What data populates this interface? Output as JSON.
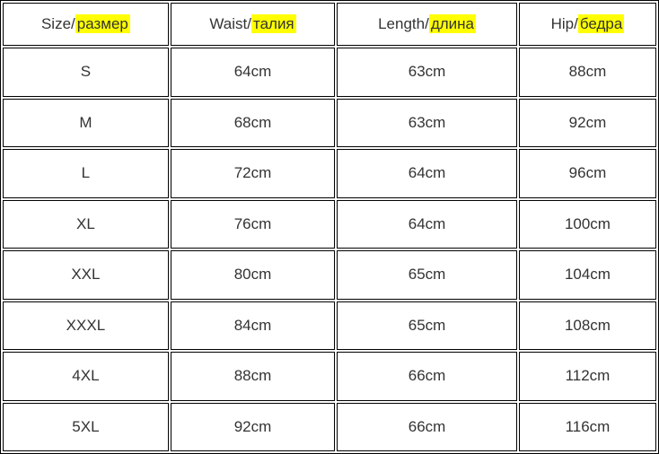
{
  "page": {
    "background_color": "#ffffff",
    "text_color": "#333333",
    "border_color": "#000000",
    "highlight_color": "#ffff00"
  },
  "table": {
    "columns": [
      {
        "prefix": "Size/",
        "highlighted": "размер"
      },
      {
        "prefix": "Waist/",
        "highlighted": "талия"
      },
      {
        "prefix": "Length/",
        "highlighted": "длина"
      },
      {
        "prefix": "Hip/",
        "highlighted": "бедра"
      }
    ],
    "rows": [
      {
        "size": "S",
        "waist": "64cm",
        "length": "63cm",
        "hip": "88cm"
      },
      {
        "size": "M",
        "waist": "68cm",
        "length": "63cm",
        "hip": "92cm"
      },
      {
        "size": "L",
        "waist": "72cm",
        "length": "64cm",
        "hip": "96cm"
      },
      {
        "size": "XL",
        "waist": "76cm",
        "length": "64cm",
        "hip": "100cm"
      },
      {
        "size": "XXL",
        "waist": "80cm",
        "length": "65cm",
        "hip": "104cm"
      },
      {
        "size": "XXXL",
        "waist": "84cm",
        "length": "65cm",
        "hip": "108cm"
      },
      {
        "size": "4XL",
        "waist": "88cm",
        "length": "66cm",
        "hip": "112cm"
      },
      {
        "size": "5XL",
        "waist": "92cm",
        "length": "66cm",
        "hip": "116cm"
      }
    ]
  },
  "chart_data": {
    "type": "table",
    "title": "",
    "columns": [
      "Size/размер",
      "Waist/талия",
      "Length/длина",
      "Hip/бедра"
    ],
    "rows": [
      [
        "S",
        "64cm",
        "63cm",
        "88cm"
      ],
      [
        "M",
        "68cm",
        "63cm",
        "92cm"
      ],
      [
        "L",
        "72cm",
        "64cm",
        "96cm"
      ],
      [
        "XL",
        "76cm",
        "64cm",
        "100cm"
      ],
      [
        "XXL",
        "80cm",
        "65cm",
        "104cm"
      ],
      [
        "XXXL",
        "84cm",
        "65cm",
        "108cm"
      ],
      [
        "4XL",
        "88cm",
        "66cm",
        "112cm"
      ],
      [
        "5XL",
        "92cm",
        "66cm",
        "116cm"
      ]
    ],
    "notes": "Russian word in each column header is highlighted yellow (#ffff00). Units in cm embedded in cell text."
  }
}
